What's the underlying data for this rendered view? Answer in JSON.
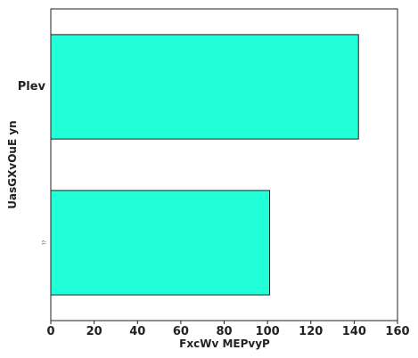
{
  "chart_data": {
    "type": "bar",
    "orientation": "horizontal",
    "categories": [
      "Plev",
      "??"
    ],
    "values": [
      142,
      101
    ],
    "xlabel": "FxcWv MEPvyP",
    "ylabel": "UasGXvOuE yn",
    "xlim": [
      0,
      160
    ],
    "xticks": [
      0,
      20,
      40,
      60,
      80,
      100,
      120,
      140,
      160
    ],
    "grid": false,
    "colors": {
      "bar": "#21ffd8",
      "edge": "#222222",
      "axis": "#222222"
    }
  }
}
